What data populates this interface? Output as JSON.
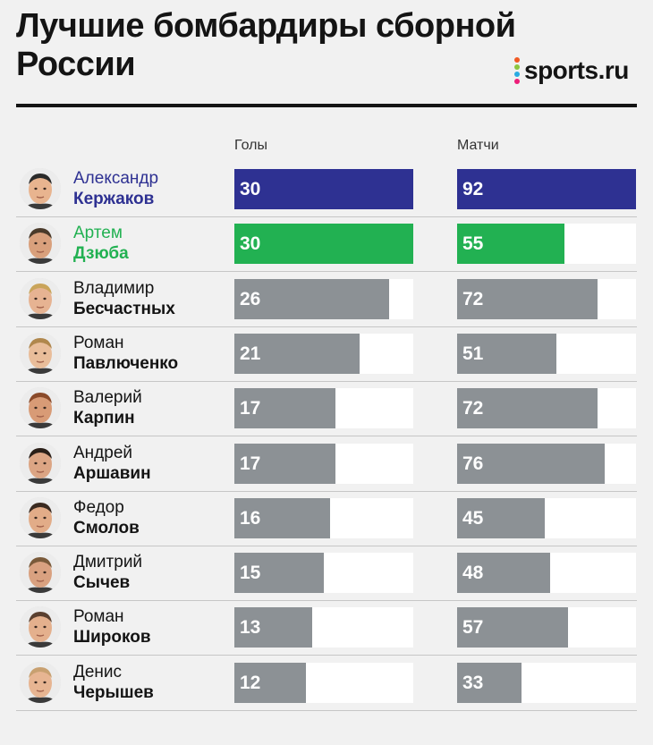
{
  "header": {
    "title": "Лучшие бомбардиры сборной России",
    "logo_text": "sports.ru"
  },
  "colors": {
    "background": "#f1f1f1",
    "first_place": "#2e3192",
    "second_place": "#22b152",
    "default_bar": "#8c9195",
    "track": "#ffffff"
  },
  "chart_data": {
    "type": "bar",
    "columns": [
      "Голы",
      "Матчи"
    ],
    "max": {
      "goals": 30,
      "matches": 92
    },
    "players": [
      {
        "first": "Александр",
        "last": "Кержаков",
        "goals": 30,
        "matches": 92
      },
      {
        "first": "Артем",
        "last": "Дзюба",
        "goals": 30,
        "matches": 55
      },
      {
        "first": "Владимир",
        "last": "Бесчастных",
        "goals": 26,
        "matches": 72
      },
      {
        "first": "Роман",
        "last": "Павлюченко",
        "goals": 21,
        "matches": 51
      },
      {
        "first": "Валерий",
        "last": "Карпин",
        "goals": 17,
        "matches": 72
      },
      {
        "first": "Андрей",
        "last": "Аршавин",
        "goals": 17,
        "matches": 76
      },
      {
        "first": "Федор",
        "last": "Смолов",
        "goals": 16,
        "matches": 45
      },
      {
        "first": "Дмитрий",
        "last": "Сычев",
        "goals": 15,
        "matches": 48
      },
      {
        "first": "Роман",
        "last": "Широков",
        "goals": 13,
        "matches": 57
      },
      {
        "first": "Денис",
        "last": "Черышев",
        "goals": 12,
        "matches": 33
      }
    ]
  }
}
